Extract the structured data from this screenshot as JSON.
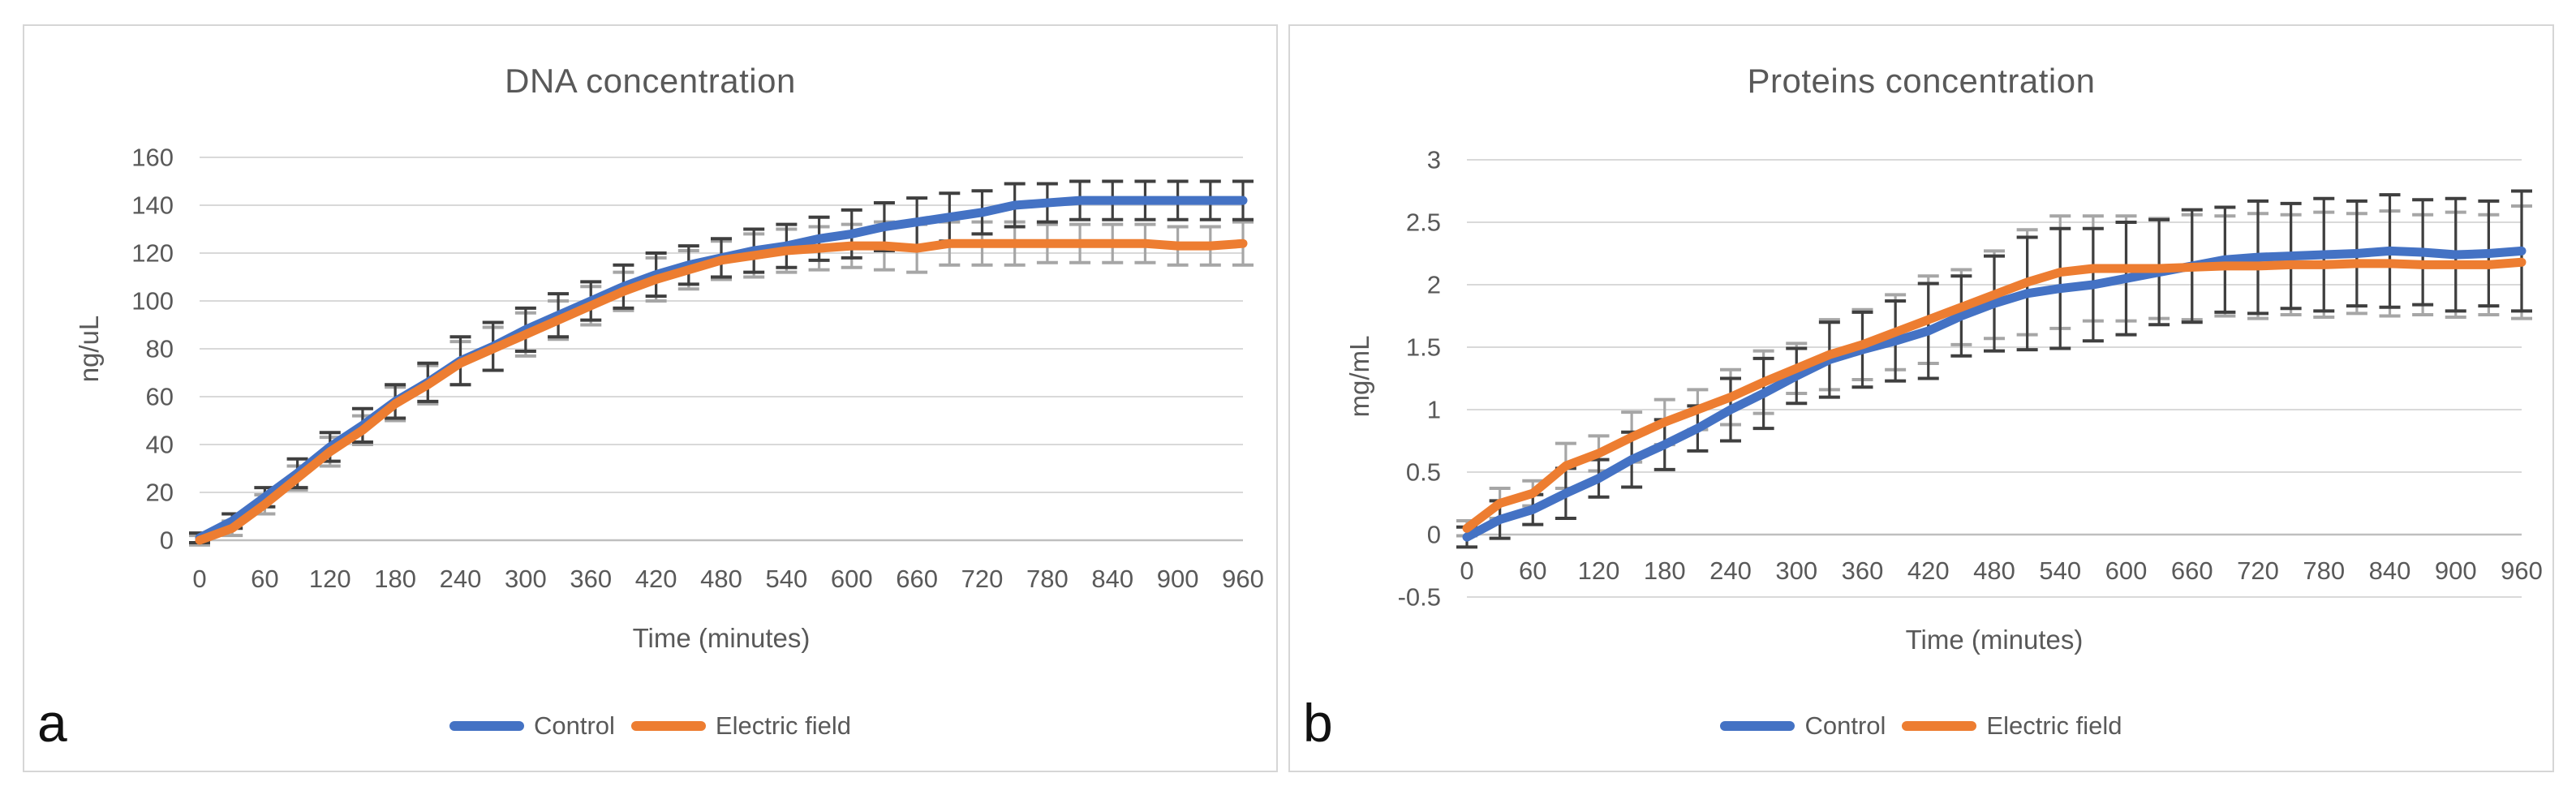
{
  "figure": {
    "panels": [
      {
        "letter": "a"
      },
      {
        "letter": "b"
      }
    ]
  },
  "colors": {
    "control": "#4472C4",
    "electric_field": "#ED7D31",
    "gridline": "#D9D9D9",
    "axis_line": "#BFBFBF",
    "text": "#595959"
  },
  "chart_data": [
    {
      "type": "line",
      "title": "DNA concentration",
      "xlabel": "Time (minutes)",
      "ylabel": "ng/uL",
      "x": [
        0,
        30,
        60,
        90,
        120,
        150,
        180,
        210,
        240,
        270,
        300,
        330,
        360,
        390,
        420,
        450,
        480,
        510,
        540,
        570,
        600,
        630,
        660,
        690,
        720,
        750,
        780,
        810,
        840,
        870,
        900,
        930,
        960
      ],
      "x_tick_labels": [
        0,
        60,
        120,
        180,
        240,
        300,
        360,
        420,
        480,
        540,
        600,
        660,
        720,
        780,
        840,
        900,
        960
      ],
      "y_axis": {
        "min": 0,
        "max": 160,
        "step": 20
      },
      "grid": true,
      "legend_position": "bottom",
      "series": [
        {
          "name": "Control",
          "color": "#4472C4",
          "error_bar_color": "#3F3F3F",
          "values": [
            1,
            8,
            18,
            28,
            39,
            48,
            58,
            66,
            75,
            81,
            88,
            94,
            100,
            106,
            111,
            115,
            118,
            121,
            123,
            126,
            128,
            131,
            133,
            135,
            137,
            140,
            141,
            142,
            142,
            142,
            142,
            142,
            142
          ],
          "errors": [
            2,
            3,
            4,
            6,
            6,
            7,
            7,
            8,
            10,
            10,
            9,
            9,
            8,
            9,
            9,
            8,
            8,
            9,
            9,
            9,
            10,
            10,
            10,
            10,
            9,
            9,
            8,
            8,
            8,
            8,
            8,
            8,
            8
          ]
        },
        {
          "name": "Electric field",
          "color": "#ED7D31",
          "error_bar_color": "#A6A6A6",
          "values": [
            0,
            5,
            15,
            26,
            37,
            46,
            57,
            65,
            74,
            80,
            86,
            92,
            98,
            104,
            109,
            113,
            117,
            119,
            121,
            122,
            123,
            123,
            122,
            124,
            124,
            124,
            124,
            124,
            124,
            124,
            123,
            123,
            124
          ],
          "errors": [
            2,
            3,
            4,
            5,
            6,
            6,
            7,
            8,
            9,
            9,
            9,
            8,
            8,
            8,
            9,
            8,
            8,
            9,
            9,
            9,
            9,
            10,
            10,
            9,
            9,
            9,
            8,
            8,
            8,
            8,
            8,
            8,
            9
          ]
        }
      ]
    },
    {
      "type": "line",
      "title": "Proteins concentration",
      "xlabel": "Time (minutes)",
      "ylabel": "mg/mL",
      "x": [
        0,
        30,
        60,
        90,
        120,
        150,
        180,
        210,
        240,
        270,
        300,
        330,
        360,
        390,
        420,
        450,
        480,
        510,
        540,
        570,
        600,
        630,
        660,
        690,
        720,
        750,
        780,
        810,
        840,
        870,
        900,
        930,
        960
      ],
      "x_tick_labels": [
        0,
        60,
        120,
        180,
        240,
        300,
        360,
        420,
        480,
        540,
        600,
        660,
        720,
        780,
        840,
        900,
        960
      ],
      "y_axis": {
        "min": -0.5,
        "max": 3,
        "step": 0.5
      },
      "grid": true,
      "legend_position": "bottom",
      "series": [
        {
          "name": "Control",
          "color": "#4472C4",
          "error_bar_color": "#3F3F3F",
          "values": [
            -0.02,
            0.12,
            0.2,
            0.33,
            0.45,
            0.6,
            0.72,
            0.85,
            1.0,
            1.13,
            1.27,
            1.4,
            1.48,
            1.55,
            1.63,
            1.75,
            1.85,
            1.93,
            1.97,
            2.0,
            2.05,
            2.1,
            2.15,
            2.2,
            2.22,
            2.23,
            2.24,
            2.25,
            2.27,
            2.26,
            2.24,
            2.25,
            2.27
          ],
          "errors": [
            0.08,
            0.15,
            0.12,
            0.2,
            0.15,
            0.22,
            0.2,
            0.18,
            0.25,
            0.28,
            0.22,
            0.3,
            0.3,
            0.32,
            0.38,
            0.32,
            0.38,
            0.45,
            0.48,
            0.45,
            0.45,
            0.42,
            0.45,
            0.42,
            0.45,
            0.42,
            0.45,
            0.42,
            0.45,
            0.42,
            0.45,
            0.42,
            0.48
          ]
        },
        {
          "name": "Electric field",
          "color": "#ED7D31",
          "error_bar_color": "#A6A6A6",
          "values": [
            0.05,
            0.25,
            0.33,
            0.55,
            0.65,
            0.78,
            0.9,
            1.0,
            1.1,
            1.22,
            1.33,
            1.44,
            1.52,
            1.62,
            1.72,
            1.82,
            1.92,
            2.02,
            2.1,
            2.13,
            2.13,
            2.13,
            2.14,
            2.15,
            2.15,
            2.16,
            2.16,
            2.17,
            2.17,
            2.16,
            2.16,
            2.16,
            2.18
          ],
          "errors": [
            0.06,
            0.12,
            0.1,
            0.18,
            0.14,
            0.2,
            0.18,
            0.16,
            0.22,
            0.25,
            0.2,
            0.28,
            0.28,
            0.3,
            0.35,
            0.3,
            0.35,
            0.42,
            0.45,
            0.42,
            0.42,
            0.4,
            0.42,
            0.4,
            0.42,
            0.4,
            0.42,
            0.4,
            0.42,
            0.4,
            0.42,
            0.4,
            0.45
          ]
        }
      ]
    }
  ]
}
